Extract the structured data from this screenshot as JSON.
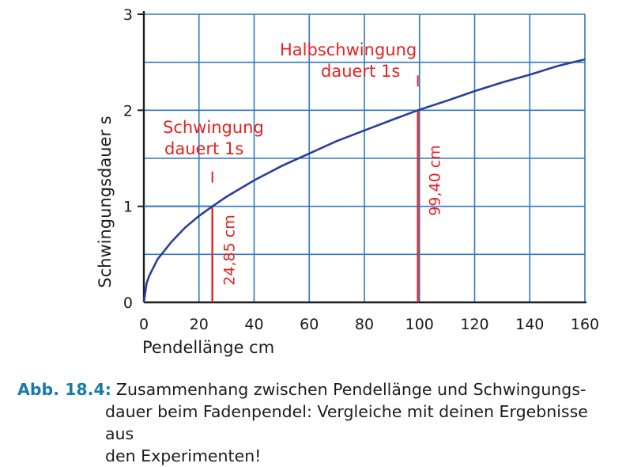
{
  "chart_data": {
    "type": "line",
    "ylabel": "Schwingungsdauer  s",
    "xlabel": "Pendellänge  cm",
    "xlim": [
      0,
      160
    ],
    "ylim": [
      0,
      3
    ],
    "xticks": [
      "0",
      "20",
      "40",
      "60",
      "80",
      "100",
      "120",
      "140",
      "160"
    ],
    "yticks": [
      "0",
      "1",
      "2",
      "3"
    ],
    "grid": true,
    "x": [
      0,
      1,
      2,
      5,
      10,
      15,
      20,
      24.85,
      30,
      40,
      50,
      60,
      70,
      80,
      90,
      99.4,
      110,
      120,
      130,
      140,
      150,
      160
    ],
    "y": [
      0,
      0.2,
      0.28,
      0.45,
      0.63,
      0.78,
      0.9,
      1.0,
      1.1,
      1.27,
      1.42,
      1.55,
      1.68,
      1.79,
      1.9,
      2.0,
      2.1,
      2.2,
      2.29,
      2.37,
      2.46,
      2.53
    ],
    "color": "#2b3e9a",
    "markers": [
      {
        "x": 24.85,
        "y": 1,
        "label": "24,85 cm"
      },
      {
        "x": 99.4,
        "y": 2,
        "label": "99,40 cm"
      }
    ],
    "annotations": [
      {
        "lines": [
          "Schwingung",
          "dauert 1s"
        ]
      },
      {
        "lines": [
          "Halbschwingung",
          "dauert 1s"
        ]
      }
    ],
    "accent_color": "#e32322"
  },
  "caption": {
    "label": "Abb. 18.4:",
    "line1": "Zusammenhang zwischen Pendellänge und Schwingungs-",
    "line2": "dauer beim Fadenpendel: Vergleiche mit deinen Ergebnisse aus",
    "line3": "den Experimenten!"
  }
}
